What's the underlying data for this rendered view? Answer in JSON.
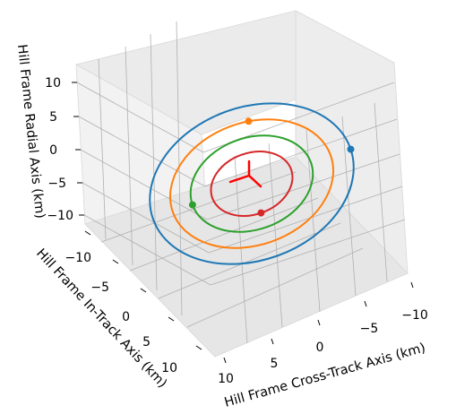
{
  "chart_data": {
    "type": "line",
    "projection": "3d",
    "title": "",
    "axes": {
      "x": {
        "label": "Hill Frame Cross-Track Axis (km)",
        "ticks": [
          "10",
          "5",
          "0",
          "−5",
          "−10"
        ],
        "range": [
          -12,
          12
        ]
      },
      "y": {
        "label": "Hill Frame In-Track Axis (km)",
        "ticks": [
          "−10",
          "−5",
          "0",
          "5",
          "10"
        ],
        "range": [
          -12,
          12
        ]
      },
      "z": {
        "label": "Hill Frame Radial Axis (km)",
        "ticks": [
          "10",
          "5",
          "0",
          "−5",
          "−10"
        ],
        "range": [
          -12,
          12
        ]
      }
    },
    "grid": true,
    "legend": "none",
    "series": [
      {
        "color": "#1f77b4",
        "shape": "relative-motion ellipse",
        "radial_amplitude_km": 10,
        "in_track_amplitude_km": 20,
        "cross_track_amplitude_km": 10,
        "marker": "current position"
      },
      {
        "color": "#ff7f0e",
        "shape": "relative-motion ellipse",
        "radial_amplitude_km": 8,
        "in_track_amplitude_km": 16,
        "cross_track_amplitude_km": 8,
        "marker": "current position"
      },
      {
        "color": "#2ca02c",
        "shape": "relative-motion ellipse",
        "radial_amplitude_km": 6,
        "in_track_amplitude_km": 12,
        "cross_track_amplitude_km": 6,
        "marker": "current position"
      },
      {
        "color": "#d62728",
        "shape": "relative-motion ellipse",
        "radial_amplitude_km": 4,
        "in_track_amplitude_km": 8,
        "cross_track_amplitude_km": 4,
        "marker": "current position"
      }
    ],
    "origin_triad": {
      "color": "#ff0000",
      "description": "short Hill-frame axis arrows at the origin"
    }
  }
}
